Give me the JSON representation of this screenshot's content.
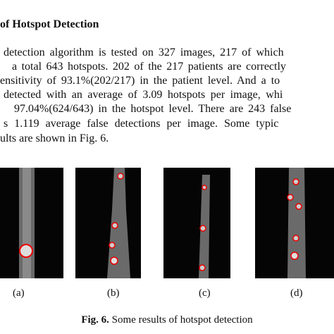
{
  "section": {
    "heading": "of Hotspot Detection",
    "lines": [
      "detection algorithm is tested on 327 images, 217 of which",
      "a total 643 hotspots. 202 of the 217 patients are correctly",
      "ensitivity of 93.1%(202/217) in the patient level. And a to",
      "detected with an average of 3.09 hotspots per image, whi",
      "97.04%(624/643) in the hotspot level. There are 243 false",
      "s 1.119 average false detections per image. Some typic",
      "ults are shown in Fig. 6."
    ]
  },
  "figure": {
    "panels": [
      "(a)",
      "(b)",
      "(c)",
      "(d)"
    ],
    "caption_label": "Fig. 6.",
    "caption_text": "Some results of hotspot detection"
  }
}
